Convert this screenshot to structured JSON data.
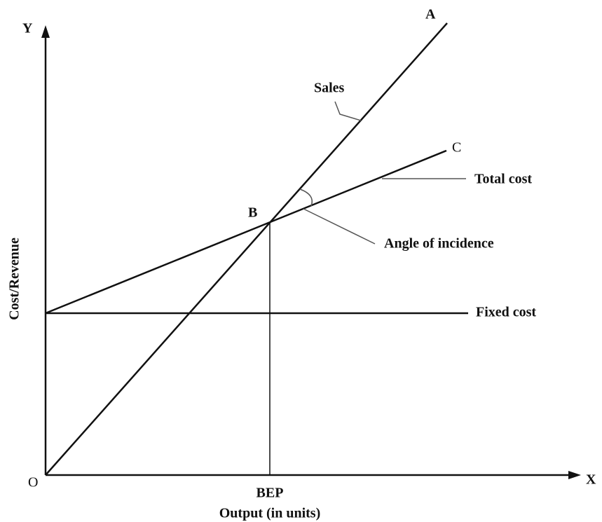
{
  "axes": {
    "y_axis": "Y",
    "x_axis": "X",
    "origin": "O",
    "y_title": "Cost/Revenue",
    "x_title": "Output (in units)"
  },
  "points": {
    "a": "A",
    "b": "B",
    "c": "C",
    "bep": "BEP"
  },
  "lines": {
    "sales": "Sales",
    "total_cost": "Total cost",
    "angle": "Angle of incidence",
    "fixed_cost": "Fixed cost"
  }
}
